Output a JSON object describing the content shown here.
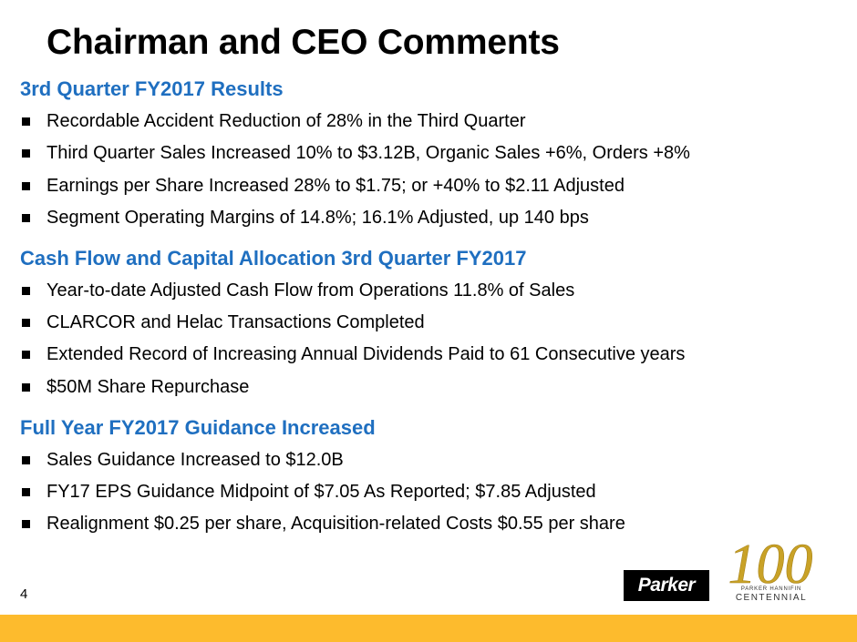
{
  "title": "Chairman and CEO Comments",
  "sections": [
    {
      "heading": "3rd Quarter FY2017 Results",
      "items": [
        "Recordable Accident Reduction of 28% in the Third Quarter",
        "Third Quarter Sales Increased 10% to $3.12B, Organic Sales +6%, Orders +8%",
        "Earnings per Share Increased 28% to $1.75; or +40% to $2.11 Adjusted",
        "Segment Operating Margins of 14.8%; 16.1% Adjusted, up 140 bps"
      ]
    },
    {
      "heading": "Cash Flow and Capital Allocation 3rd Quarter FY2017",
      "items": [
        "Year-to-date Adjusted Cash Flow from Operations 11.8% of Sales",
        "CLARCOR and Helac Transactions Completed",
        "Extended Record of Increasing Annual Dividends Paid to 61 Consecutive years",
        "$50M Share Repurchase"
      ]
    },
    {
      "heading": "Full Year FY2017 Guidance Increased",
      "items": [
        "Sales Guidance Increased to $12.0B",
        "FY17 EPS Guidance Midpoint of $7.05 As Reported; $7.85 Adjusted",
        "Realignment $0.25 per share, Acquisition-related Costs $0.55 per share"
      ]
    }
  ],
  "page_number": "4",
  "logos": {
    "parker": "Parker",
    "centennial_number": "100",
    "centennial_line1": "PARKER HANNIFIN",
    "centennial_line2": "CENTENNIAL"
  },
  "colors": {
    "heading": "#1f6fc0",
    "footer_bar": "#fdbb2d",
    "centennial_gold": "#c9a227"
  }
}
